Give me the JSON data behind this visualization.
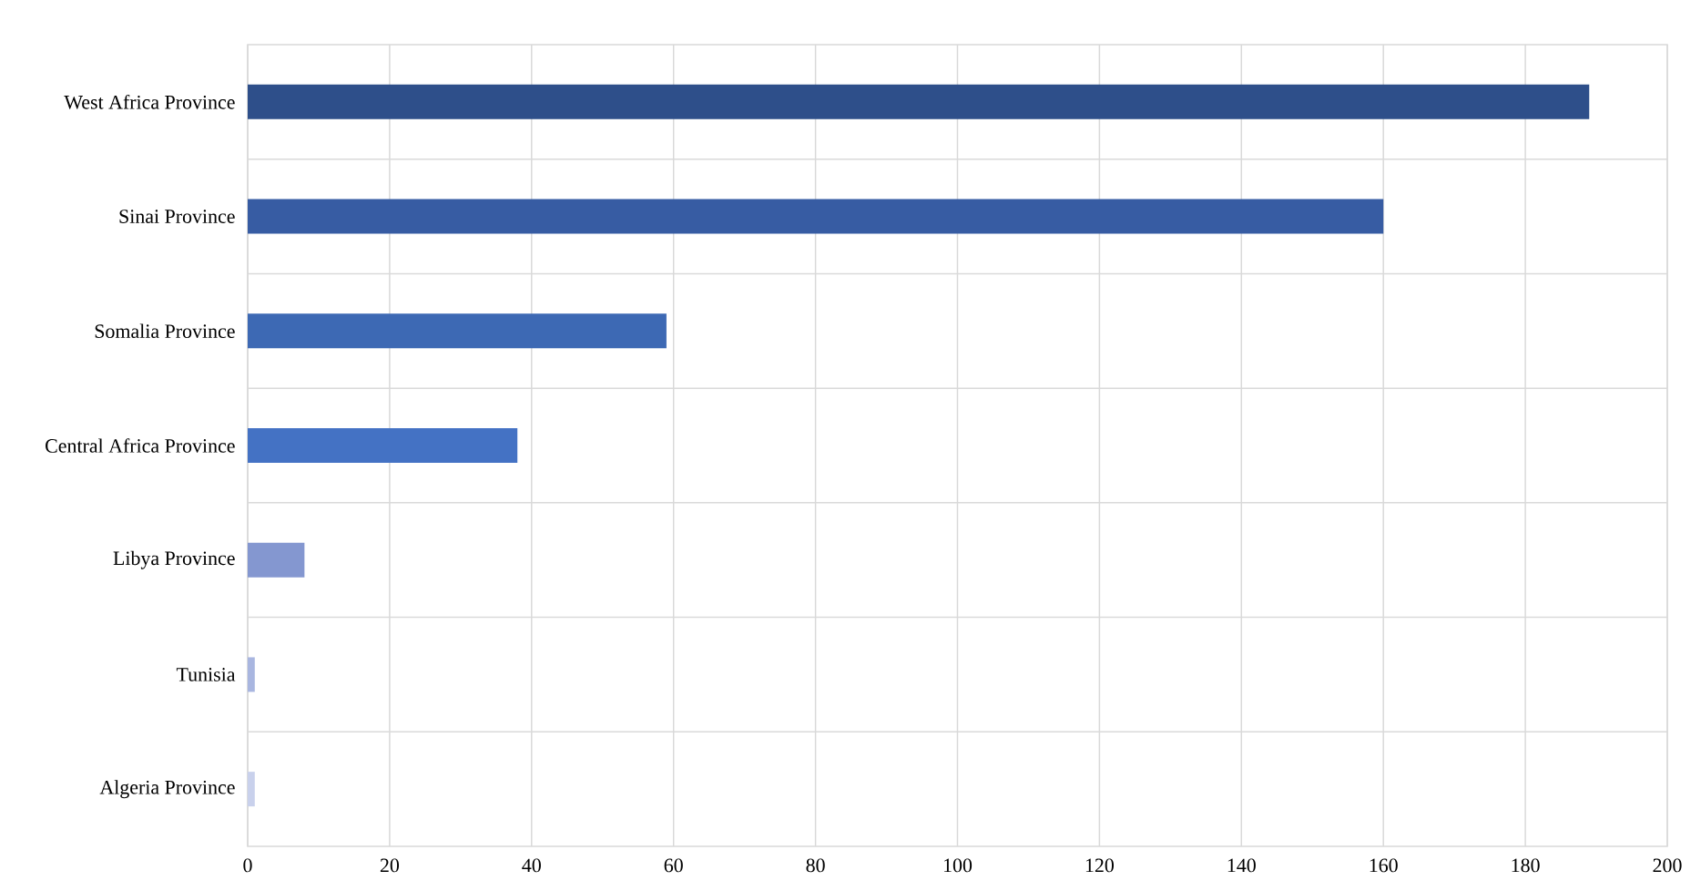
{
  "chart_data": {
    "type": "bar",
    "orientation": "horizontal",
    "categories": [
      "West Africa Province",
      "Sinai Province",
      "Somalia Province",
      "Central Africa Province",
      "Libya Province",
      "Tunisia",
      "Algeria Province"
    ],
    "values": [
      189,
      160,
      59,
      38,
      8,
      1,
      1
    ],
    "colors": [
      "#2e4f8a",
      "#375ca3",
      "#3d69b4",
      "#4472c4",
      "#8497d0",
      "#a9b6e0",
      "#c9d1ec"
    ],
    "xlim": [
      0,
      200
    ],
    "xticks": [
      0,
      20,
      40,
      60,
      80,
      100,
      120,
      140,
      160,
      180,
      200
    ],
    "grid": true
  }
}
